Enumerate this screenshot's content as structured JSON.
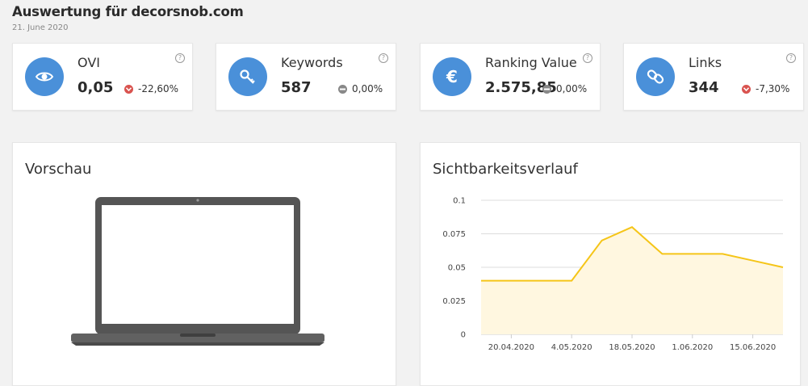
{
  "header": {
    "title": "Auswertung für decorsnob.com",
    "date": "21. June 2020"
  },
  "kpis": [
    {
      "label": "OVI",
      "value": "0,05",
      "change": "-22,60%",
      "trend": "down",
      "icon": "eye-icon",
      "help": "?"
    },
    {
      "label": "Keywords",
      "value": "587",
      "change": "0,00%",
      "trend": "neutral",
      "icon": "key-icon",
      "help": "?"
    },
    {
      "label": "Ranking Value",
      "value": "2.575,85",
      "change": "0,00%",
      "trend": "neutral",
      "icon": "euro-icon",
      "help": "?"
    },
    {
      "label": "Links",
      "value": "344",
      "change": "-7,30%",
      "trend": "down",
      "icon": "link-icon",
      "help": "?"
    }
  ],
  "colors": {
    "accent": "#4a90d9",
    "down": "#d9534f",
    "neutral": "#888888",
    "line": "#f5c518",
    "area": "#fff7e0"
  },
  "preview": {
    "title": "Vorschau"
  },
  "visibility": {
    "title": "Sichtbarkeitsverlauf"
  },
  "chart_data": {
    "type": "area",
    "title": "Sichtbarkeitsverlauf",
    "xlabel": "",
    "ylabel": "",
    "x": [
      "13.04.2020",
      "20.04.2020",
      "27.04.2020",
      "4.05.2020",
      "11.05.2020",
      "18.05.2020",
      "25.05.2020",
      "1.06.2020",
      "8.06.2020",
      "15.06.2020",
      "21.06.2020"
    ],
    "x_tick_labels": [
      "20.04.2020",
      "4.05.2020",
      "18.05.2020",
      "1.06.2020",
      "15.06.2020"
    ],
    "series": [
      {
        "values": [
          0.04,
          0.04,
          0.04,
          0.04,
          0.07,
          0.08,
          0.06,
          0.06,
          0.06,
          0.055,
          0.05
        ]
      }
    ],
    "y_tick_labels": [
      "0",
      "0.025",
      "0.05",
      "0.075",
      "0.1"
    ],
    "ylim": [
      0,
      0.1
    ],
    "grid": true
  }
}
